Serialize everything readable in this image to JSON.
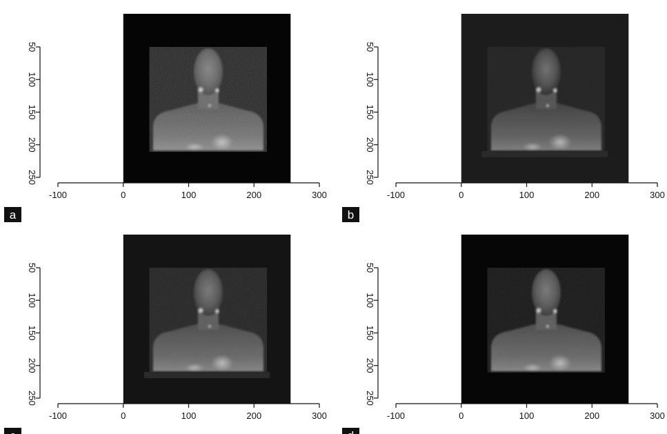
{
  "chart_data": [
    {
      "panel_label": "a",
      "type": "heatmap",
      "x_ticks": [
        -100,
        0,
        100,
        200,
        300
      ],
      "y_ticks": [
        50,
        100,
        150,
        200,
        250
      ],
      "xlim": [
        -100,
        300
      ],
      "ylim": [
        250,
        50
      ],
      "image_extent": {
        "x": [
          0,
          256
        ],
        "y": [
          0,
          256
        ]
      },
      "background": "#050505",
      "noise": "high",
      "artifact_band": false
    },
    {
      "panel_label": "b",
      "type": "heatmap",
      "x_ticks": [
        -100,
        0,
        100,
        200,
        300
      ],
      "y_ticks": [
        50,
        100,
        150,
        200,
        250
      ],
      "xlim": [
        -100,
        300
      ],
      "ylim": [
        250,
        50
      ],
      "image_extent": {
        "x": [
          0,
          256
        ],
        "y": [
          0,
          256
        ]
      },
      "background": "#1c1c1c",
      "noise": "low",
      "artifact_band": true
    },
    {
      "panel_label": "c",
      "type": "heatmap",
      "x_ticks": [
        -100,
        0,
        100,
        200,
        300
      ],
      "y_ticks": [
        50,
        100,
        150,
        200,
        250
      ],
      "xlim": [
        -100,
        300
      ],
      "ylim": [
        250,
        50
      ],
      "image_extent": {
        "x": [
          0,
          256
        ],
        "y": [
          0,
          256
        ]
      },
      "background": "#141414",
      "noise": "medium",
      "artifact_band": true
    },
    {
      "panel_label": "d",
      "type": "heatmap",
      "x_ticks": [
        -100,
        0,
        100,
        200,
        300
      ],
      "y_ticks": [
        50,
        100,
        150,
        200,
        250
      ],
      "xlim": [
        -100,
        300
      ],
      "ylim": [
        250,
        50
      ],
      "image_extent": {
        "x": [
          0,
          256
        ],
        "y": [
          0,
          256
        ]
      },
      "background": "#060606",
      "noise": "medium",
      "artifact_band": false
    }
  ]
}
